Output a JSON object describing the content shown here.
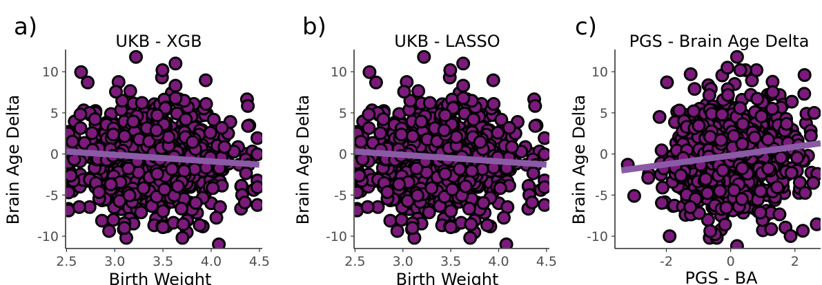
{
  "colors": {
    "point_fill": "#7b1a7b",
    "point_stroke": "#000000",
    "fit_line": "#8a5aa6"
  },
  "chart_data": [
    {
      "type": "scatter",
      "panel_label": "a)",
      "title": "UKB - XGB",
      "xlabel": "Birth Weight",
      "ylabel": "Brain Age Delta",
      "xlim": [
        2.49,
        4.53
      ],
      "ylim": [
        -11.5,
        12.7
      ],
      "xticks": [
        2.5,
        3.0,
        3.5,
        4.0,
        4.5
      ],
      "xtick_labels": [
        "2.5",
        "3.0",
        "3.5",
        "4.0",
        "4.5"
      ],
      "yticks": [
        -10,
        -5,
        0,
        5,
        10
      ],
      "ytick_labels": [
        "-10",
        "-5",
        "0",
        "5",
        "10"
      ],
      "grid": false,
      "fit_line": {
        "x": [
          2.5,
          4.5
        ],
        "y": [
          0.3,
          -1.3
        ]
      },
      "n_points": 700,
      "x_range": [
        2.52,
        4.48
      ],
      "x_center": 3.4,
      "x_spread": 0.42,
      "y_center": -0.5,
      "y_spread": 3.6,
      "seed": 11,
      "notable_points": [
        [
          3.22,
          11.8
        ],
        [
          3.63,
          11.0
        ],
        [
          4.08,
          -11.0
        ],
        [
          2.72,
          8.7
        ],
        [
          3.63,
          8.3
        ],
        [
          3.1,
          -9.0
        ],
        [
          3.5,
          -8.9
        ],
        [
          4.35,
          -5.9
        ]
      ]
    },
    {
      "type": "scatter",
      "panel_label": "b)",
      "title": "UKB - LASSO",
      "xlabel": "Birth Weight",
      "ylabel": "Brain Age Delta",
      "xlim": [
        2.49,
        4.53
      ],
      "ylim": [
        -11.5,
        12.7
      ],
      "xticks": [
        2.5,
        3.0,
        3.5,
        4.0,
        4.5
      ],
      "xtick_labels": [
        "2.5",
        "3.0",
        "3.5",
        "4.0",
        "4.5"
      ],
      "yticks": [
        -10,
        -5,
        0,
        5,
        10
      ],
      "ytick_labels": [
        "-10",
        "-5",
        "0",
        "5",
        "10"
      ],
      "grid": false,
      "fit_line": {
        "x": [
          2.5,
          4.5
        ],
        "y": [
          0.3,
          -1.3
        ]
      },
      "n_points": 700,
      "x_range": [
        2.52,
        4.48
      ],
      "x_center": 3.4,
      "x_spread": 0.42,
      "y_center": -0.5,
      "y_spread": 3.6,
      "seed": 11,
      "notable_points": [
        [
          3.22,
          11.8
        ],
        [
          3.63,
          11.0
        ],
        [
          4.08,
          -11.0
        ],
        [
          2.72,
          8.7
        ],
        [
          3.63,
          8.3
        ],
        [
          3.1,
          -9.0
        ],
        [
          3.5,
          -8.9
        ],
        [
          4.35,
          -5.9
        ]
      ]
    },
    {
      "type": "scatter",
      "panel_label": "c)",
      "title": "PGS - Brain Age Delta",
      "xlabel": "PGS - BA",
      "ylabel": "Brain Age Delta",
      "xlim": [
        -3.6,
        2.8
      ],
      "ylim": [
        -11.5,
        12.7
      ],
      "xticks": [
        -2,
        0,
        2
      ],
      "xtick_labels": [
        "-2",
        "0",
        "2"
      ],
      "yticks": [
        -10,
        -5,
        0,
        5,
        10
      ],
      "ytick_labels": [
        "-10",
        "-5",
        "0",
        "5",
        "10"
      ],
      "grid": false,
      "fit_line": {
        "x": [
          -3.4,
          2.8
        ],
        "y": [
          -2.0,
          1.3
        ]
      },
      "n_points": 900,
      "x_range": [
        -3.3,
        2.75
      ],
      "x_center": 0.0,
      "x_spread": 0.95,
      "y_center": -0.2,
      "y_spread": 3.5,
      "seed": 29,
      "notable_points": [
        [
          0.2,
          11.8
        ],
        [
          -0.1,
          10.5
        ],
        [
          -3.2,
          -1.3
        ],
        [
          -3.0,
          -5.1
        ],
        [
          -1.9,
          -10.0
        ],
        [
          0.2,
          -11.2
        ],
        [
          2.3,
          9.6
        ],
        [
          2.6,
          5.0
        ]
      ]
    }
  ]
}
